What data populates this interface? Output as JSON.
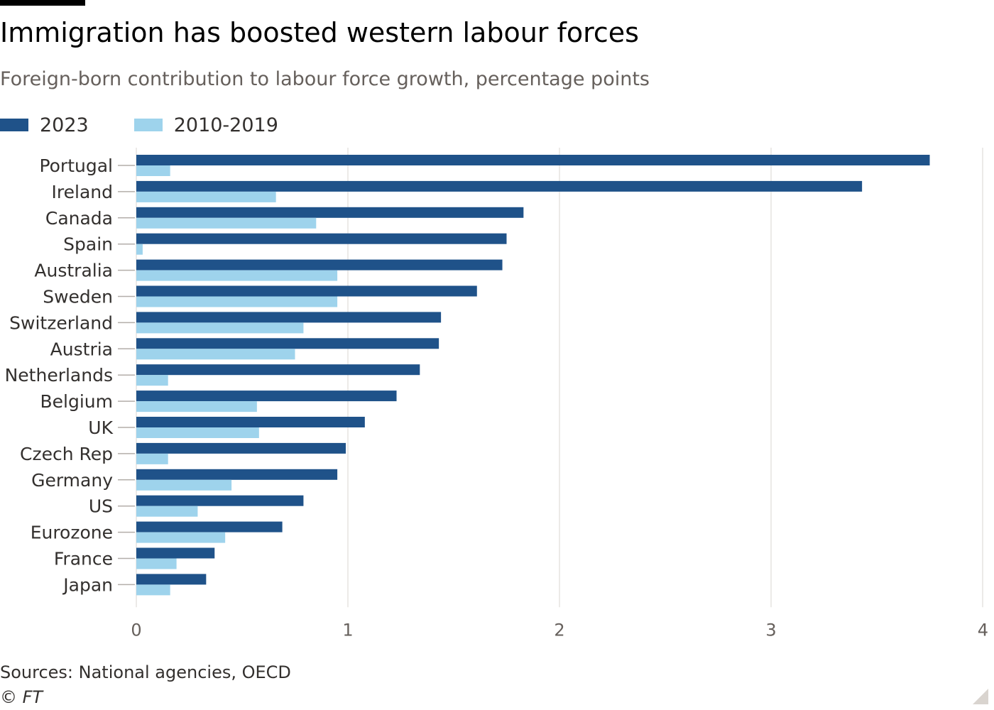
{
  "header": {
    "title": "Immigration has boosted western labour forces",
    "subtitle": "Foreign-born contribution to labour force growth, percentage points"
  },
  "legend": {
    "items": [
      {
        "label": "2023",
        "color": "#1f5289"
      },
      {
        "label": "2010-2019",
        "color": "#9ed3ec"
      }
    ]
  },
  "chart_data": {
    "type": "bar",
    "orientation": "horizontal",
    "title": "Immigration has boosted western labour forces",
    "subtitle": "Foreign-born contribution to labour force growth, percentage points",
    "xlabel": "",
    "ylabel": "",
    "xlim": [
      0,
      4
    ],
    "xticks": [
      0,
      1,
      2,
      3,
      4
    ],
    "grid": "vertical",
    "legend_position": "top-left",
    "categories": [
      "Portugal",
      "Ireland",
      "Canada",
      "Spain",
      "Australia",
      "Sweden",
      "Switzerland",
      "Austria",
      "Netherlands",
      "Belgium",
      "UK",
      "Czech Rep",
      "Germany",
      "US",
      "Eurozone",
      "France",
      "Japan"
    ],
    "series": [
      {
        "name": "2023",
        "color": "#1f5289",
        "values": [
          3.75,
          3.43,
          1.83,
          1.75,
          1.73,
          1.61,
          1.44,
          1.43,
          1.34,
          1.23,
          1.08,
          0.99,
          0.95,
          0.79,
          0.69,
          0.37,
          0.33
        ]
      },
      {
        "name": "2010-2019",
        "color": "#9ed3ec",
        "values": [
          0.16,
          0.66,
          0.85,
          0.03,
          0.95,
          0.95,
          0.79,
          0.75,
          0.15,
          0.57,
          0.58,
          0.15,
          0.45,
          0.29,
          0.42,
          0.19,
          0.16
        ]
      }
    ]
  },
  "footer": {
    "source": "Sources: National agencies, OECD",
    "copyright": "© FT"
  }
}
